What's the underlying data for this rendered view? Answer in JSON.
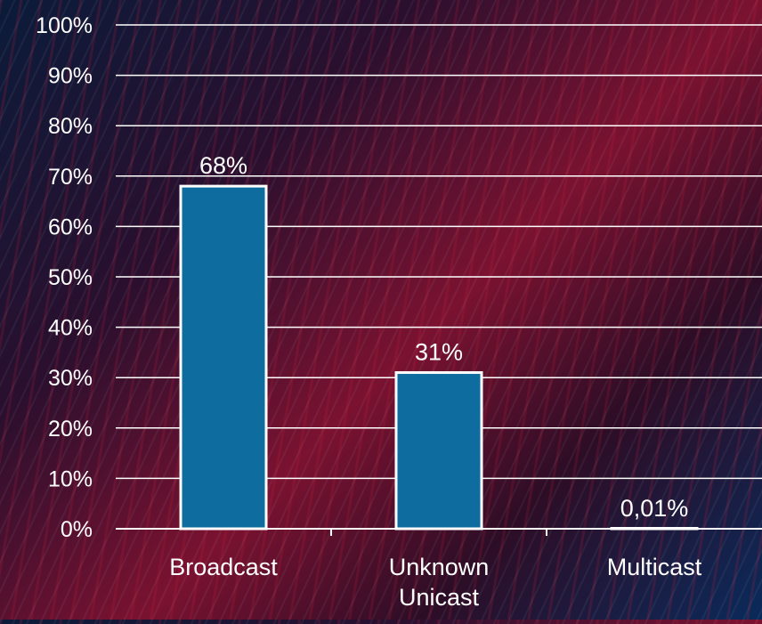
{
  "chart_data": {
    "type": "bar",
    "categories": [
      [
        "Broadcast"
      ],
      [
        "Unknown",
        "Unicast"
      ],
      [
        "Multicast"
      ]
    ],
    "values": [
      68,
      31,
      0.01
    ],
    "data_labels": [
      "68%",
      "31%",
      "0,01%"
    ],
    "ylim": [
      0,
      100
    ],
    "y_ticks": [
      0,
      10,
      20,
      30,
      40,
      50,
      60,
      70,
      80,
      90,
      100
    ],
    "y_tick_labels": [
      "0%",
      "10%",
      "20%",
      "30%",
      "40%",
      "50%",
      "60%",
      "70%",
      "80%",
      "90%",
      "100%"
    ],
    "grid": true,
    "bar_color": "#0e6d9e",
    "bar_outline": "#ffffff",
    "text_color": "#ffffff"
  }
}
